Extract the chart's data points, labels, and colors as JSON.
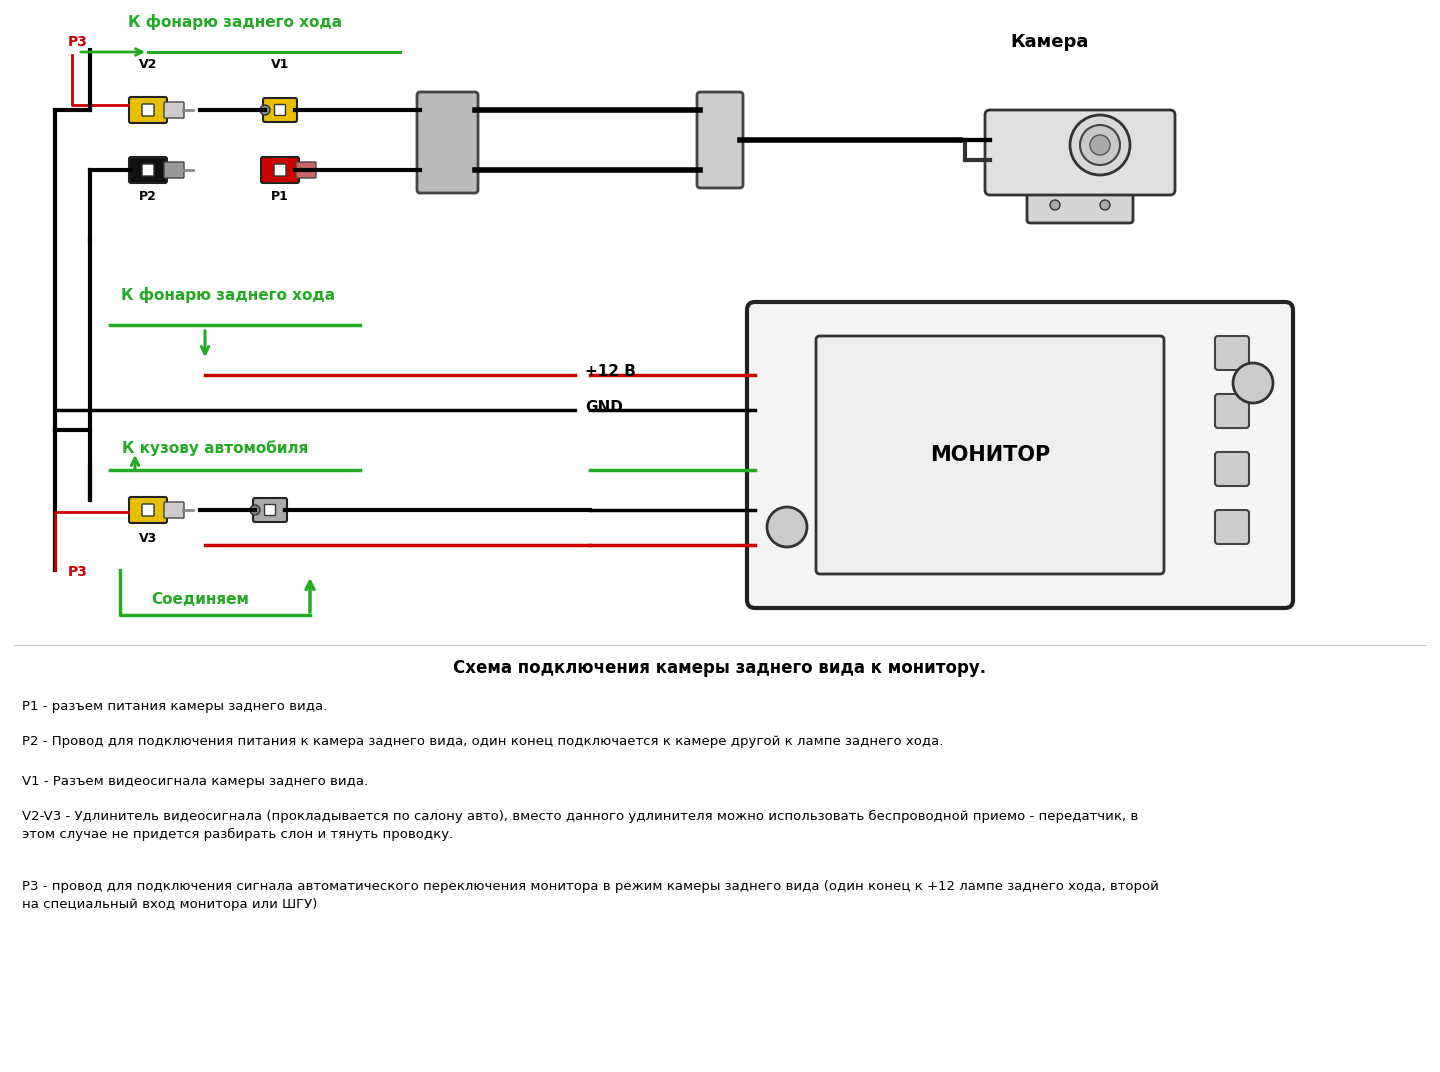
{
  "title": "Схема подключения камеры заднего вида к монитору.",
  "background_color": "#ffffff",
  "text_color": "#000000",
  "green_color": "#22aa22",
  "red_color": "#cc0000",
  "yellow_color": "#e8c000",
  "black_connector_color": "#111111",
  "gray_color": "#aaaaaa",
  "texts": {
    "k_fonarju_top": "К фонарю заднего хода",
    "k_fonarju_mid": "К фонарю заднего хода",
    "k_kuzovu": "К кузову автомобиля",
    "plus12": "+12 В",
    "gnd": "GND",
    "soedinjaem": "Соединяем",
    "kamera": "Камера",
    "monitor": "МОНИТОР",
    "p1": "P1",
    "p2": "P2",
    "p3": "P3",
    "v1": "V1",
    "v2": "V2",
    "v3": "V3"
  },
  "descriptions": [
    "P1 - разъем питания камеры заднего вида.",
    "P2 - Провод для подключения питания к камера заднего вида, один конец подключается к камере другой к лампе заднего хода.",
    "V1 - Разъем видеосигнала камеры заднего вида.",
    "V2-V3 - Удлинитель видеосигнала (прокладывается по салону авто), вместо данного удлинителя можно использовать беспроводной приемо - передатчик, в этом случае не придется разбирать слон и тянуть проводку.",
    "Р3 - провод для подключения сигнала автоматического переключения монитора в режим камеры заднего вида (один конец к +12 лампе заднего хода, второй на специальный вход монитора или ШГУ)"
  ]
}
